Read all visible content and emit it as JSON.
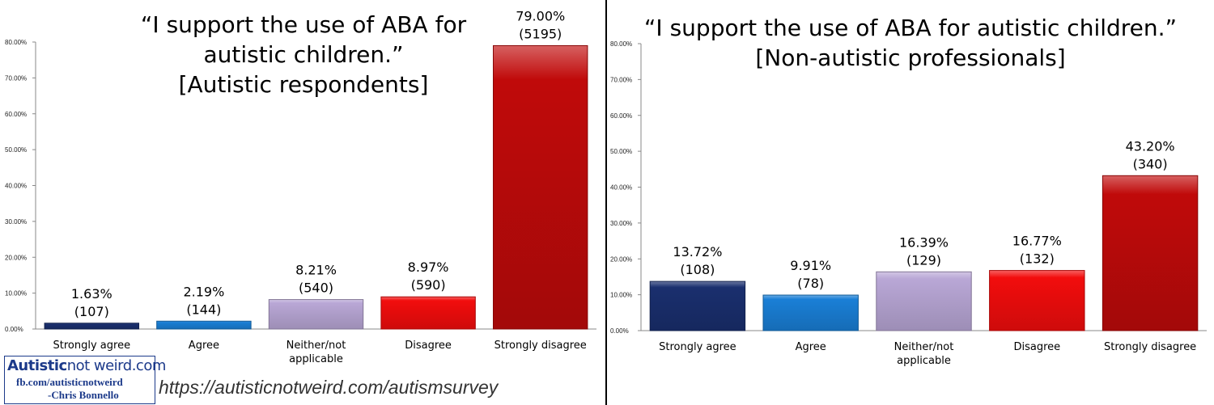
{
  "chart_data": [
    {
      "type": "bar",
      "title_lines": [
        "“I support the use of ABA for",
        "autistic children.”",
        "[Autistic respondents]"
      ],
      "categories": [
        "Strongly agree",
        "Agree",
        "Neither/not\napplicable",
        "Disagree",
        "Strongly disagree"
      ],
      "values": [
        1.63,
        2.19,
        8.21,
        8.97,
        79.0
      ],
      "value_labels": [
        "1.63%",
        "2.19%",
        "8.21%",
        "8.97%",
        "79.00%"
      ],
      "count_labels": [
        "(107)",
        "(144)",
        "(540)",
        "(590)",
        "(5195)"
      ],
      "ylim": [
        0,
        80
      ],
      "yticks": [
        "0.00%",
        "10.00%",
        "20.00%",
        "30.00%",
        "40.00%",
        "50.00%",
        "60.00%",
        "70.00%",
        "80.00%"
      ],
      "bar_colors": [
        "#1a2f6e",
        "#1a7fd6",
        "#b9a7d6",
        "#f20d0d",
        "#c00a0a"
      ],
      "grid": false
    },
    {
      "type": "bar",
      "title_lines": [
        "“I support the use of ABA for autistic children.”",
        "[Non-autistic professionals]"
      ],
      "categories": [
        "Strongly agree",
        "Agree",
        "Neither/not\napplicable",
        "Disagree",
        "Strongly disagree"
      ],
      "values": [
        13.72,
        9.91,
        16.39,
        16.77,
        43.2
      ],
      "value_labels": [
        "13.72%",
        "9.91%",
        "16.39%",
        "16.77%",
        "43.20%"
      ],
      "count_labels": [
        "(108)",
        "(78)",
        "(129)",
        "(132)",
        "(340)"
      ],
      "ylim": [
        0,
        80
      ],
      "yticks": [
        "0.00%",
        "10.00%",
        "20.00%",
        "30.00%",
        "40.00%",
        "50.00%",
        "60.00%",
        "70.00%",
        "80.00%"
      ],
      "bar_colors": [
        "#1a2f6e",
        "#1a7fd6",
        "#b9a7d6",
        "#f20d0d",
        "#c00a0a"
      ],
      "grid": false
    }
  ],
  "credit": {
    "logo_bold": "Autistic",
    "logo_rest": "not weird.com",
    "facebook": "fb.com/autisticnotweird",
    "author": "-Chris Bonnello"
  },
  "source_url": "https://autisticnotweird.com/autismsurvey"
}
